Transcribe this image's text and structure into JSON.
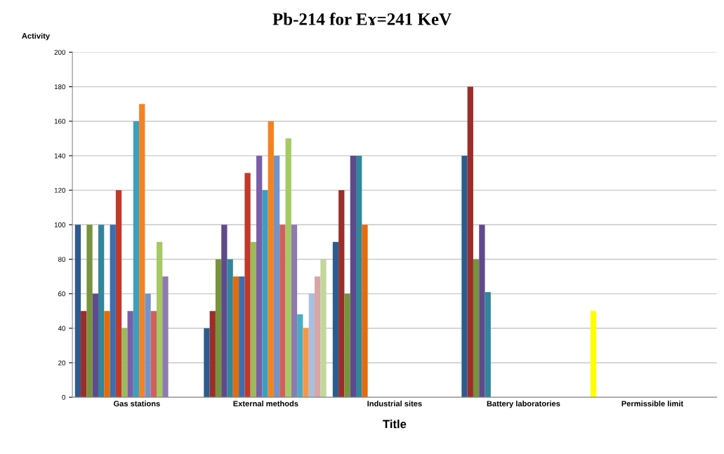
{
  "chart_data": {
    "type": "bar",
    "title": "Pb-214 for Eɤ=241 KeV",
    "xlabel": "Title",
    "ylabel": "Activity",
    "categories": [
      "Gas stations",
      "External methods",
      "Industrial sites",
      "Battery laboratories",
      "Permissible limit"
    ],
    "ylim": [
      0,
      200
    ],
    "yticks": [
      0,
      20,
      40,
      60,
      80,
      100,
      120,
      140,
      160,
      180,
      200
    ],
    "grid": "y",
    "legend": false,
    "series": [
      {
        "colors": [
          "#2c5c8f",
          "#2c5c8f",
          "#2c5c8f",
          "#2c5c8f",
          "#ffff00"
        ],
        "values": [
          100,
          40,
          90,
          140,
          50
        ]
      },
      {
        "color": "#9b2d2a",
        "values": [
          50,
          50,
          120,
          180,
          null
        ]
      },
      {
        "color": "#77933c",
        "values": [
          100,
          80,
          60,
          80,
          null
        ]
      },
      {
        "color": "#5f4a8b",
        "values": [
          60,
          100,
          140,
          100,
          null
        ]
      },
      {
        "color": "#31859c",
        "values": [
          100,
          80,
          140,
          61,
          null
        ]
      },
      {
        "color": "#e46c0a",
        "values": [
          50,
          70,
          100,
          null,
          null
        ]
      },
      {
        "color": "#3a6fb0",
        "values": [
          100,
          70,
          null,
          null,
          null
        ]
      },
      {
        "color": "#c0392b",
        "values": [
          120,
          130,
          null,
          null,
          null
        ]
      },
      {
        "color": "#9bbb59",
        "values": [
          40,
          90,
          null,
          null,
          null
        ]
      },
      {
        "color": "#7a5fa8",
        "values": [
          50,
          140,
          null,
          null,
          null
        ]
      },
      {
        "color": "#3aa0c0",
        "values": [
          160,
          120,
          null,
          null,
          null
        ]
      },
      {
        "color": "#f58220",
        "values": [
          170,
          160,
          null,
          null,
          null
        ]
      },
      {
        "color": "#6f95cc",
        "values": [
          60,
          140,
          null,
          null,
          null
        ]
      },
      {
        "color": "#d0605c",
        "values": [
          50,
          100,
          null,
          null,
          null
        ]
      },
      {
        "color": "#a5c963",
        "values": [
          90,
          150,
          null,
          null,
          null
        ]
      },
      {
        "color": "#8f7ab0",
        "values": [
          70,
          100,
          null,
          null,
          null
        ]
      },
      {
        "color": "#4bacc6",
        "values": [
          null,
          48,
          null,
          null,
          null
        ]
      },
      {
        "color": "#f79646",
        "values": [
          null,
          40,
          null,
          null,
          null
        ]
      },
      {
        "color": "#a8bfe0",
        "values": [
          null,
          60,
          null,
          null,
          null
        ]
      },
      {
        "color": "#d9a5a5",
        "values": [
          null,
          70,
          null,
          null,
          null
        ]
      },
      {
        "color": "#c3d69b",
        "values": [
          null,
          80,
          null,
          null,
          null
        ]
      }
    ]
  }
}
